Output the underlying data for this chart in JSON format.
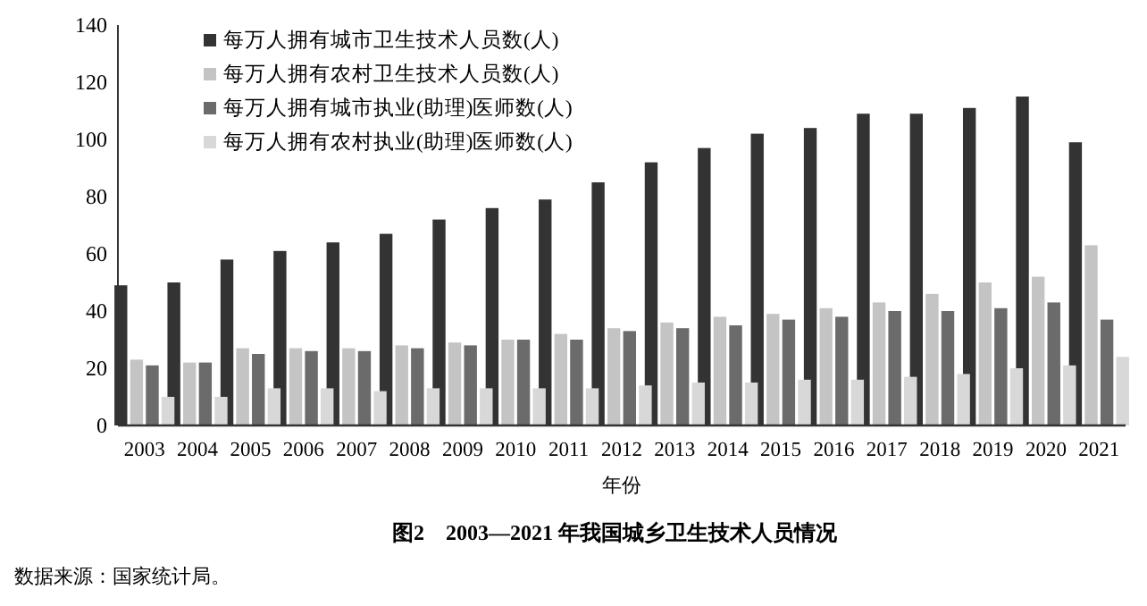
{
  "chart_data": {
    "type": "bar",
    "title": "图2　2003—2021 年我国城乡卫生技术人员情况",
    "xlabel": "年份",
    "categories": [
      "2003",
      "2004",
      "2005",
      "2006",
      "2007",
      "2008",
      "2009",
      "2010",
      "2011",
      "2012",
      "2013",
      "2014",
      "2015",
      "2016",
      "2017",
      "2018",
      "2019",
      "2020",
      "2021"
    ],
    "series": [
      {
        "name": "每万人拥有城市卫生技术人员数(人)",
        "color": "#333333",
        "values": [
          49,
          50,
          58,
          61,
          64,
          67,
          72,
          76,
          79,
          85,
          92,
          97,
          102,
          104,
          109,
          109,
          111,
          115,
          99
        ]
      },
      {
        "name": "每万人拥有农村卫生技术人员数(人)",
        "color": "#c4c4c4",
        "values": [
          23,
          22,
          27,
          27,
          27,
          28,
          29,
          30,
          32,
          34,
          36,
          38,
          39,
          41,
          43,
          46,
          50,
          52,
          63
        ]
      },
      {
        "name": "每万人拥有城市执业(助理)医师数(人)",
        "color": "#6b6b6b",
        "values": [
          21,
          22,
          25,
          26,
          26,
          27,
          28,
          30,
          30,
          33,
          34,
          35,
          37,
          38,
          40,
          40,
          41,
          43,
          37
        ]
      },
      {
        "name": "每万人拥有农村执业(助理)医师数(人)",
        "color": "#d8d8d8",
        "values": [
          10,
          10,
          13,
          13,
          12,
          13,
          13,
          13,
          13,
          14,
          15,
          15,
          16,
          16,
          17,
          18,
          20,
          21,
          24
        ]
      }
    ],
    "ylim": [
      0,
      140
    ],
    "yticks": [
      0,
      20,
      40,
      60,
      80,
      100,
      120,
      140
    ],
    "grid": false,
    "legend": "top left",
    "annotations": [
      "数据来源：国家统计局。"
    ]
  }
}
